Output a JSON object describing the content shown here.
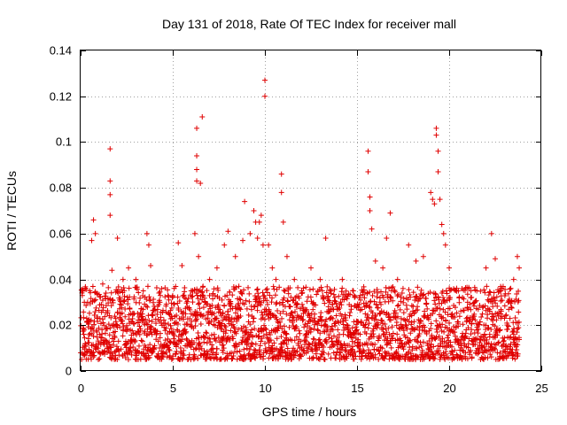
{
  "chart_data": {
    "type": "scatter",
    "title": "Day 131 of 2018, Rate Of TEC Index for receiver mall",
    "xlabel": "GPS time / hours",
    "ylabel": "ROTI / TECUs",
    "xlim": [
      0,
      25
    ],
    "ylim": [
      0,
      0.14
    ],
    "xticks": [
      0,
      5,
      10,
      15,
      20,
      25
    ],
    "xtick_labels": [
      "0",
      "5",
      "10",
      "15",
      "20",
      "25"
    ],
    "yticks": [
      0,
      0.02,
      0.04,
      0.06,
      0.08,
      0.1,
      0.12,
      0.14
    ],
    "ytick_labels": [
      "0",
      "0.02",
      "0.04",
      "0.06",
      "0.08",
      "0.1",
      "0.12",
      "0.14"
    ],
    "grid": true,
    "marker": "+",
    "color": "#e00000",
    "series": [
      {
        "name": "ROTI",
        "x_range": [
          0,
          23.8
        ],
        "baseline_band": [
          0.005,
          0.025
        ],
        "points": [
          [
            0.2,
            0.03
          ],
          [
            0.5,
            0.035
          ],
          [
            0.6,
            0.057
          ],
          [
            0.7,
            0.066
          ],
          [
            0.8,
            0.06
          ],
          [
            1.2,
            0.038
          ],
          [
            1.6,
            0.097
          ],
          [
            1.6,
            0.083
          ],
          [
            1.6,
            0.077
          ],
          [
            1.6,
            0.068
          ],
          [
            1.7,
            0.044
          ],
          [
            2.0,
            0.058
          ],
          [
            2.3,
            0.04
          ],
          [
            2.6,
            0.045
          ],
          [
            3.0,
            0.04
          ],
          [
            3.4,
            0.035
          ],
          [
            3.6,
            0.06
          ],
          [
            3.7,
            0.055
          ],
          [
            3.8,
            0.046
          ],
          [
            4.3,
            0.03
          ],
          [
            4.8,
            0.025
          ],
          [
            5.3,
            0.056
          ],
          [
            5.5,
            0.046
          ],
          [
            6.0,
            0.035
          ],
          [
            6.2,
            0.06
          ],
          [
            6.3,
            0.106
          ],
          [
            6.3,
            0.094
          ],
          [
            6.3,
            0.088
          ],
          [
            6.3,
            0.083
          ],
          [
            6.4,
            0.05
          ],
          [
            6.5,
            0.082
          ],
          [
            6.6,
            0.111
          ],
          [
            7.0,
            0.04
          ],
          [
            7.4,
            0.045
          ],
          [
            7.8,
            0.055
          ],
          [
            8.0,
            0.061
          ],
          [
            8.4,
            0.05
          ],
          [
            8.8,
            0.057
          ],
          [
            8.9,
            0.074
          ],
          [
            9.2,
            0.06
          ],
          [
            9.4,
            0.07
          ],
          [
            9.5,
            0.065
          ],
          [
            9.6,
            0.058
          ],
          [
            9.7,
            0.065
          ],
          [
            9.8,
            0.068
          ],
          [
            9.9,
            0.055
          ],
          [
            10.0,
            0.127
          ],
          [
            10.0,
            0.12
          ],
          [
            10.2,
            0.055
          ],
          [
            10.4,
            0.045
          ],
          [
            10.6,
            0.04
          ],
          [
            10.9,
            0.078
          ],
          [
            10.9,
            0.086
          ],
          [
            11.0,
            0.065
          ],
          [
            11.2,
            0.05
          ],
          [
            11.6,
            0.04
          ],
          [
            12.0,
            0.035
          ],
          [
            12.5,
            0.045
          ],
          [
            13.0,
            0.04
          ],
          [
            13.3,
            0.058
          ],
          [
            13.6,
            0.035
          ],
          [
            14.2,
            0.04
          ],
          [
            14.8,
            0.035
          ],
          [
            15.6,
            0.096
          ],
          [
            15.6,
            0.087
          ],
          [
            15.7,
            0.076
          ],
          [
            15.7,
            0.07
          ],
          [
            15.8,
            0.062
          ],
          [
            16.0,
            0.048
          ],
          [
            16.4,
            0.045
          ],
          [
            16.6,
            0.058
          ],
          [
            16.8,
            0.069
          ],
          [
            17.2,
            0.04
          ],
          [
            17.8,
            0.055
          ],
          [
            18.2,
            0.048
          ],
          [
            18.6,
            0.05
          ],
          [
            19.0,
            0.078
          ],
          [
            19.1,
            0.075
          ],
          [
            19.2,
            0.073
          ],
          [
            19.3,
            0.106
          ],
          [
            19.3,
            0.103
          ],
          [
            19.4,
            0.096
          ],
          [
            19.4,
            0.087
          ],
          [
            19.5,
            0.075
          ],
          [
            19.6,
            0.064
          ],
          [
            19.7,
            0.06
          ],
          [
            19.8,
            0.055
          ],
          [
            20.0,
            0.045
          ],
          [
            20.5,
            0.035
          ],
          [
            21.0,
            0.03
          ],
          [
            21.5,
            0.035
          ],
          [
            22.0,
            0.045
          ],
          [
            22.3,
            0.06
          ],
          [
            22.5,
            0.049
          ],
          [
            22.8,
            0.035
          ],
          [
            23.2,
            0.03
          ],
          [
            23.5,
            0.04
          ],
          [
            23.7,
            0.05
          ],
          [
            23.8,
            0.045
          ]
        ]
      }
    ]
  }
}
